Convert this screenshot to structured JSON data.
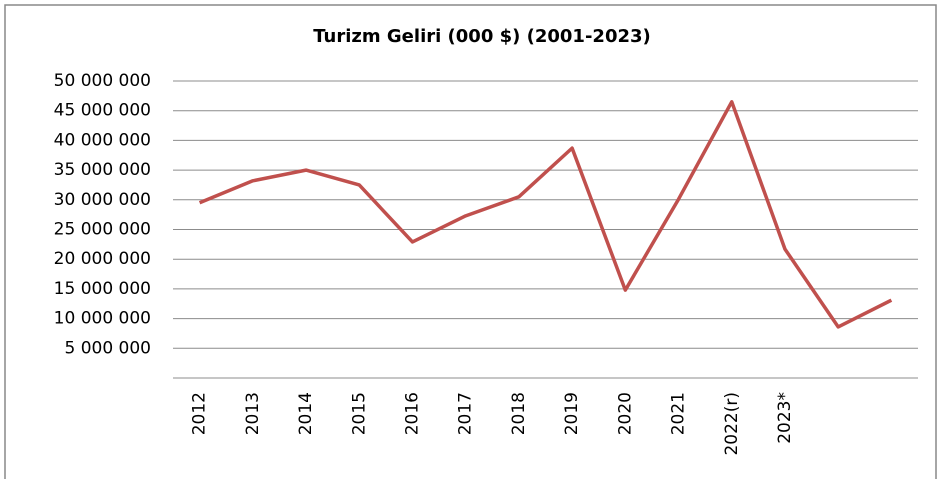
{
  "chart_data": {
    "type": "line",
    "title": "Turizm Geliri (000 $) (2001-2023)",
    "categories": [
      "2012",
      "2013",
      "2014",
      "2015",
      "2016",
      "2017",
      "2018",
      "2019",
      "2020",
      "2021",
      "2022(r)",
      "2023*",
      null,
      null
    ],
    "series": [
      {
        "name": "Turizm Geliri",
        "color": "#c0504d",
        "values": [
          29500000,
          33200000,
          35000000,
          32500000,
          22900000,
          27300000,
          30500000,
          38700000,
          14800000,
          30100000,
          46500000,
          21700000,
          8600000,
          13100000
        ]
      }
    ],
    "ylim": [
      0,
      50000000
    ],
    "yticks": [
      {
        "value": 5000000,
        "label": "5 000 000"
      },
      {
        "value": 10000000,
        "label": "10 000 000"
      },
      {
        "value": 15000000,
        "label": "15 000 000"
      },
      {
        "value": 20000000,
        "label": "20 000 000"
      },
      {
        "value": 25000000,
        "label": "25 000 000"
      },
      {
        "value": 30000000,
        "label": "30 000 000"
      },
      {
        "value": 35000000,
        "label": "35 000 000"
      },
      {
        "value": 40000000,
        "label": "40 000 000"
      },
      {
        "value": 45000000,
        "label": "45 000 000"
      },
      {
        "value": 50000000,
        "label": "50 000 000"
      }
    ],
    "grid": true
  }
}
